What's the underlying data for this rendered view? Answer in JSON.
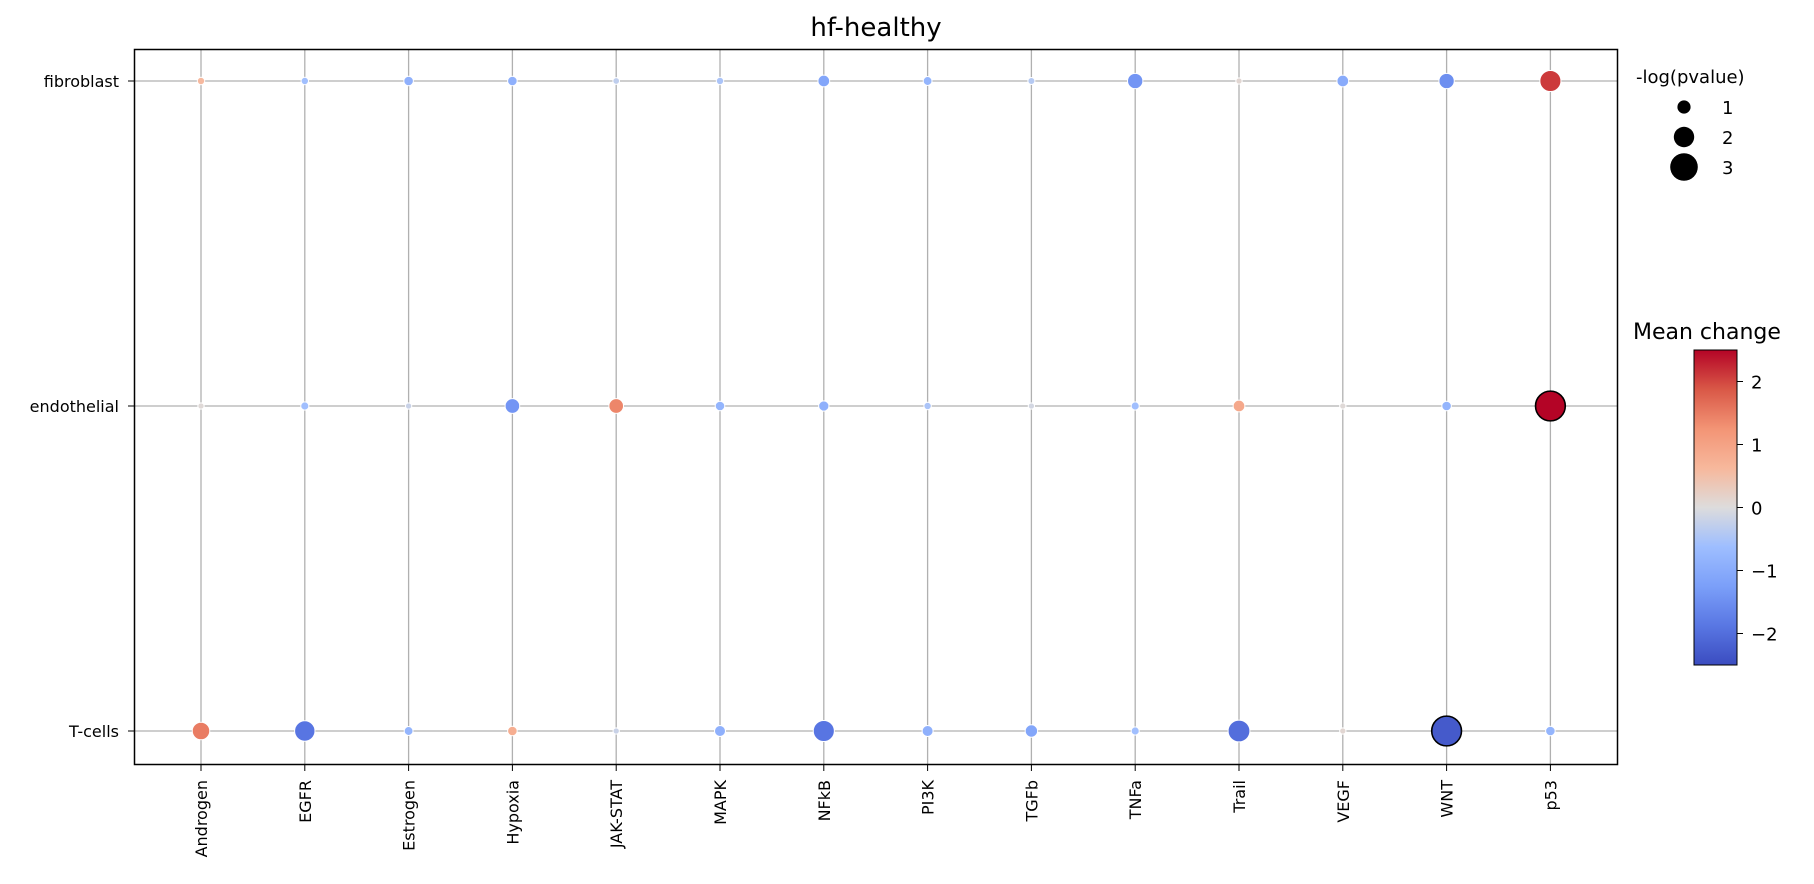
{
  "chart_data": {
    "type": "scatter",
    "title": "hf-healthy",
    "x_categories": [
      "Androgen",
      "EGFR",
      "Estrogen",
      "Hypoxia",
      "JAK-STAT",
      "MAPK",
      "NFkB",
      "PI3K",
      "TGFb",
      "TNFa",
      "Trail",
      "VEGF",
      "WNT",
      "p53"
    ],
    "y_categories": [
      "fibroblast",
      "endothelial",
      "T-cells"
    ],
    "points": [
      {
        "x": "Androgen",
        "y": "fibroblast",
        "mean_change": 0.6,
        "neg_log_pvalue": 0.2
      },
      {
        "x": "EGFR",
        "y": "fibroblast",
        "mean_change": -0.6,
        "neg_log_pvalue": 0.2
      },
      {
        "x": "Estrogen",
        "y": "fibroblast",
        "mean_change": -0.9,
        "neg_log_pvalue": 0.5
      },
      {
        "x": "Hypoxia",
        "y": "fibroblast",
        "mean_change": -0.9,
        "neg_log_pvalue": 0.5
      },
      {
        "x": "JAK-STAT",
        "y": "fibroblast",
        "mean_change": -0.3,
        "neg_log_pvalue": 0.1
      },
      {
        "x": "MAPK",
        "y": "fibroblast",
        "mean_change": -0.5,
        "neg_log_pvalue": 0.2
      },
      {
        "x": "NFkB",
        "y": "fibroblast",
        "mean_change": -1.1,
        "neg_log_pvalue": 0.8
      },
      {
        "x": "PI3K",
        "y": "fibroblast",
        "mean_change": -0.8,
        "neg_log_pvalue": 0.4
      },
      {
        "x": "TGFb",
        "y": "fibroblast",
        "mean_change": -0.4,
        "neg_log_pvalue": 0.15
      },
      {
        "x": "TNFa",
        "y": "fibroblast",
        "mean_change": -1.4,
        "neg_log_pvalue": 1.3
      },
      {
        "x": "Trail",
        "y": "fibroblast",
        "mean_change": 0.1,
        "neg_log_pvalue": 0.05
      },
      {
        "x": "VEGF",
        "y": "fibroblast",
        "mean_change": -1.0,
        "neg_log_pvalue": 0.8
      },
      {
        "x": "WNT",
        "y": "fibroblast",
        "mean_change": -1.5,
        "neg_log_pvalue": 1.3
      },
      {
        "x": "p53",
        "y": "fibroblast",
        "mean_change": 2.1,
        "neg_log_pvalue": 2.1
      },
      {
        "x": "Androgen",
        "y": "endothelial",
        "mean_change": 0.05,
        "neg_log_pvalue": 0.05
      },
      {
        "x": "EGFR",
        "y": "endothelial",
        "mean_change": -0.6,
        "neg_log_pvalue": 0.3
      },
      {
        "x": "Estrogen",
        "y": "endothelial",
        "mean_change": -0.2,
        "neg_log_pvalue": 0.05
      },
      {
        "x": "Hypoxia",
        "y": "endothelial",
        "mean_change": -1.4,
        "neg_log_pvalue": 1.2
      },
      {
        "x": "JAK-STAT",
        "y": "endothelial",
        "mean_change": 1.4,
        "neg_log_pvalue": 1.2
      },
      {
        "x": "MAPK",
        "y": "endothelial",
        "mean_change": -0.8,
        "neg_log_pvalue": 0.5
      },
      {
        "x": "NFkB",
        "y": "endothelial",
        "mean_change": -0.9,
        "neg_log_pvalue": 0.6
      },
      {
        "x": "PI3K",
        "y": "endothelial",
        "mean_change": -0.5,
        "neg_log_pvalue": 0.2
      },
      {
        "x": "TGFb",
        "y": "endothelial",
        "mean_change": -0.1,
        "neg_log_pvalue": 0.05
      },
      {
        "x": "TNFa",
        "y": "endothelial",
        "mean_change": -0.6,
        "neg_log_pvalue": 0.3
      },
      {
        "x": "Trail",
        "y": "endothelial",
        "mean_change": 0.9,
        "neg_log_pvalue": 0.8
      },
      {
        "x": "VEGF",
        "y": "endothelial",
        "mean_change": 0.05,
        "neg_log_pvalue": 0.05
      },
      {
        "x": "WNT",
        "y": "endothelial",
        "mean_change": -0.8,
        "neg_log_pvalue": 0.5
      },
      {
        "x": "p53",
        "y": "endothelial",
        "mean_change": 2.5,
        "neg_log_pvalue": 3.3,
        "highlight": true
      },
      {
        "x": "Androgen",
        "y": "T-cells",
        "mean_change": 1.5,
        "neg_log_pvalue": 1.6
      },
      {
        "x": "EGFR",
        "y": "T-cells",
        "mean_change": -1.9,
        "neg_log_pvalue": 2.0
      },
      {
        "x": "Estrogen",
        "y": "T-cells",
        "mean_change": -0.8,
        "neg_log_pvalue": 0.4
      },
      {
        "x": "Hypoxia",
        "y": "T-cells",
        "mean_change": 0.8,
        "neg_log_pvalue": 0.5
      },
      {
        "x": "JAK-STAT",
        "y": "T-cells",
        "mean_change": -0.2,
        "neg_log_pvalue": 0.05
      },
      {
        "x": "MAPK",
        "y": "T-cells",
        "mean_change": -0.9,
        "neg_log_pvalue": 0.7
      },
      {
        "x": "NFkB",
        "y": "T-cells",
        "mean_change": -1.9,
        "neg_log_pvalue": 2.1
      },
      {
        "x": "PI3K",
        "y": "T-cells",
        "mean_change": -0.9,
        "neg_log_pvalue": 0.7
      },
      {
        "x": "TGFb",
        "y": "T-cells",
        "mean_change": -1.1,
        "neg_log_pvalue": 0.9
      },
      {
        "x": "TNFa",
        "y": "T-cells",
        "mean_change": -0.6,
        "neg_log_pvalue": 0.3
      },
      {
        "x": "Trail",
        "y": "T-cells",
        "mean_change": -2.0,
        "neg_log_pvalue": 2.2
      },
      {
        "x": "VEGF",
        "y": "T-cells",
        "mean_change": 0.1,
        "neg_log_pvalue": 0.05
      },
      {
        "x": "WNT",
        "y": "T-cells",
        "mean_change": -2.3,
        "neg_log_pvalue": 3.3,
        "highlight": true
      },
      {
        "x": "p53",
        "y": "T-cells",
        "mean_change": -0.8,
        "neg_log_pvalue": 0.5
      }
    ],
    "size_legend": {
      "title": "-log(pvalue)",
      "entries": [
        1,
        2,
        3
      ],
      "placement": "top-right, outside plot"
    },
    "colorbar": {
      "title": "Mean change",
      "range": [
        -2.5,
        2.5
      ],
      "ticks": [
        2,
        1,
        0,
        -1,
        -2
      ],
      "tick_labels": [
        "2",
        "1",
        "0",
        "−1",
        "−2"
      ],
      "colormap": "coolwarm",
      "colors": {
        "low": "#3b4cc0",
        "mid": "#dddddd",
        "high": "#b40426"
      }
    },
    "grid": true
  }
}
